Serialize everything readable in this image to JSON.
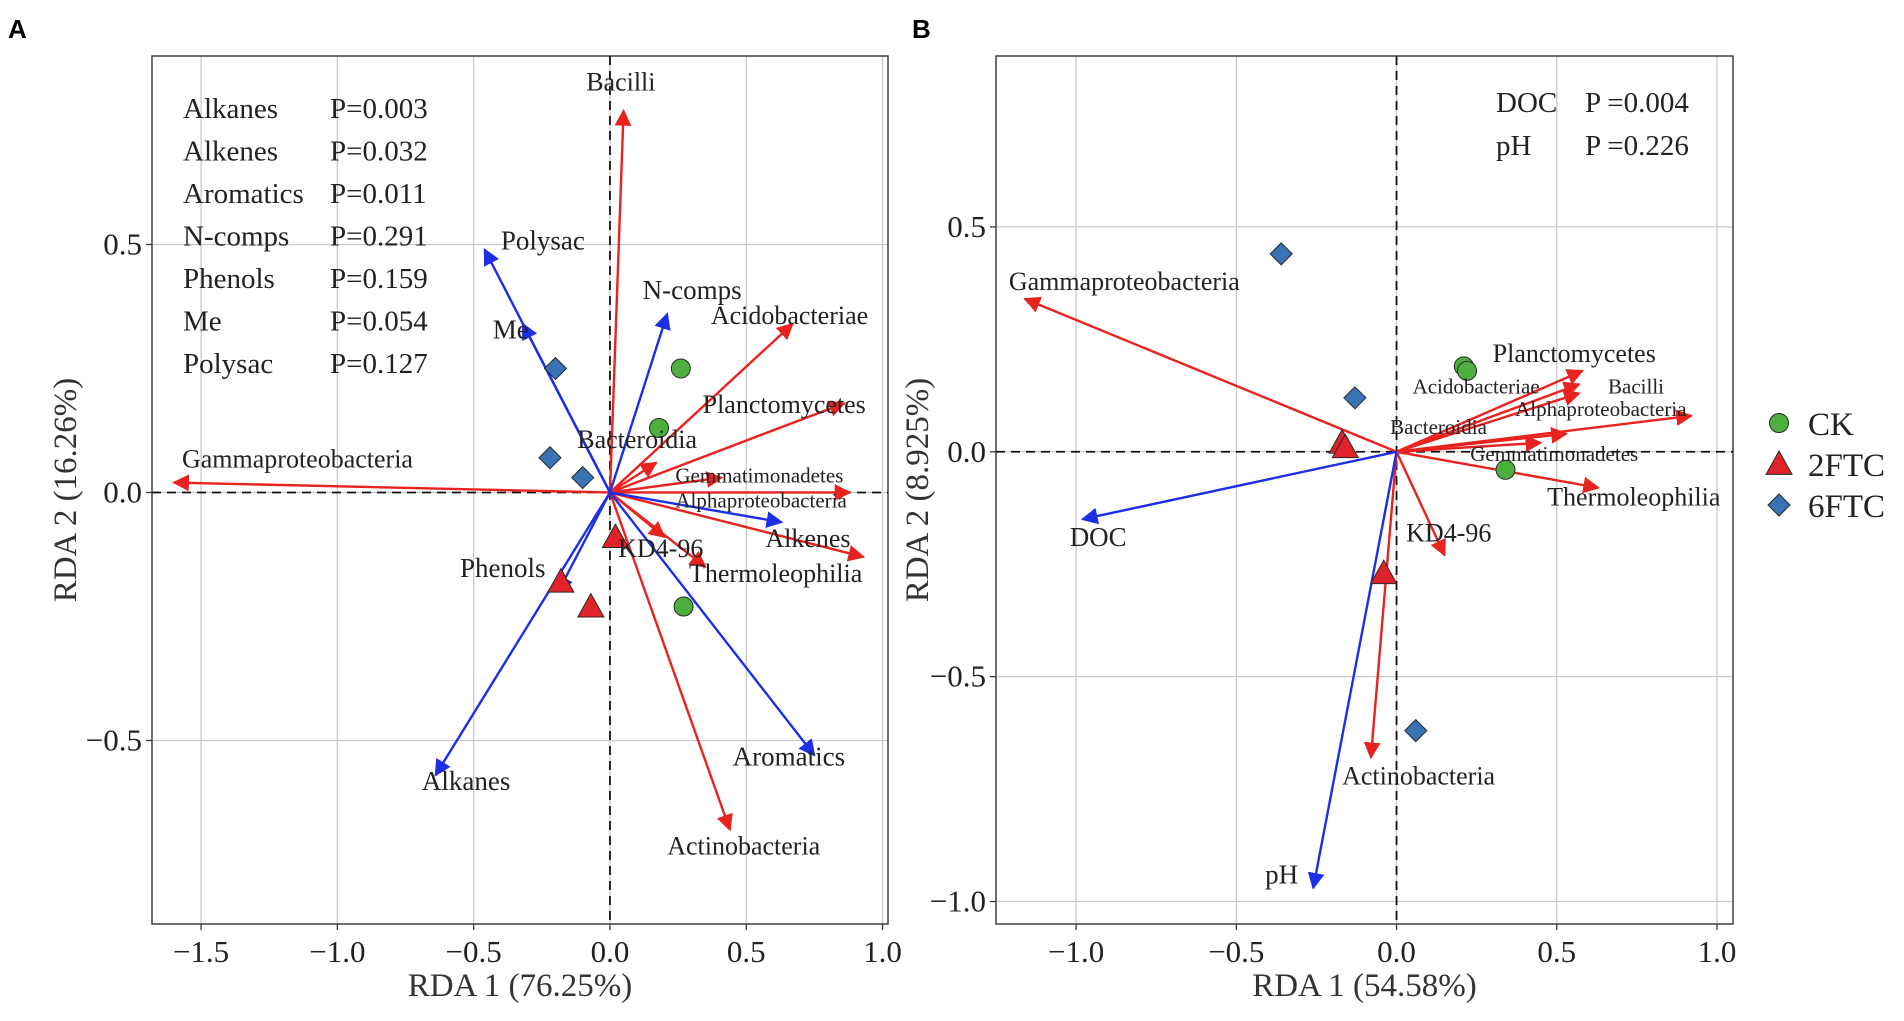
{
  "colors": {
    "species": "#e8231f",
    "env": "#1c2fe6",
    "ck": "#4caf3e",
    "ftc2": "#e0232a",
    "ftc6": "#3a73b4",
    "grid": "#c9c9c9"
  },
  "legend": [
    {
      "label": "CK",
      "shape": "circle",
      "color": "#4caf3e"
    },
    {
      "label": "2FTC",
      "shape": "triangle",
      "color": "#e0232a"
    },
    {
      "label": "6FTC",
      "shape": "diamond",
      "color": "#3a73b4"
    }
  ],
  "chart_data": [
    {
      "panel": "A",
      "type": "scatter",
      "subtype": "rda-biplot",
      "xlabel": "RDA 1 (76.25%)",
      "ylabel": "RDA 2 (16.26%)",
      "xlim": [
        -1.68,
        1.02
      ],
      "ylim": [
        -0.87,
        0.88
      ],
      "xticks": [
        -1.5,
        -1.0,
        -0.5,
        0.0,
        0.5,
        1.0
      ],
      "xtick_labels": [
        "−1.5",
        "−1.0",
        "−0.5",
        "0.0",
        "0.5",
        "1.0"
      ],
      "yticks": [
        -0.5,
        0.0,
        0.5
      ],
      "ytick_labels": [
        "−0.5",
        "0.0",
        "0.5"
      ],
      "stats": [
        {
          "name": "Alkanes",
          "p": "P=0.003"
        },
        {
          "name": "Alkenes",
          "p": "P=0.032"
        },
        {
          "name": "Aromatics",
          "p": "P=0.011"
        },
        {
          "name": "N-comps",
          "p": "P=0.291"
        },
        {
          "name": "Phenols",
          "p": "P=0.159"
        },
        {
          "name": "Me",
          "p": "P=0.054"
        },
        {
          "name": "Polysac",
          "p": "P=0.127"
        }
      ],
      "species_vectors": [
        {
          "name": "Bacilli",
          "x": 0.05,
          "y": 0.77,
          "lx": 0.04,
          "ly": 0.81,
          "anchor": "middle",
          "size": "lg"
        },
        {
          "name": "Acidobacteriae",
          "x": 0.67,
          "y": 0.34,
          "lx": 0.37,
          "ly": 0.34,
          "anchor": "start",
          "size": "lg"
        },
        {
          "name": "Planctomycetes",
          "x": 0.86,
          "y": 0.18,
          "lx": 0.34,
          "ly": 0.16,
          "anchor": "start",
          "size": "lg"
        },
        {
          "name": "Bacteroidia",
          "x": 0.17,
          "y": 0.06,
          "lx": -0.12,
          "ly": 0.09,
          "anchor": "start",
          "size": "lg"
        },
        {
          "name": "Gemmatimonadetes",
          "x": 0.41,
          "y": 0.03,
          "lx": 0.24,
          "ly": 0.02,
          "anchor": "start",
          "size": "sm"
        },
        {
          "name": "Alphaproteobacteria",
          "x": 0.88,
          "y": 0.0,
          "lx": 0.24,
          "ly": -0.03,
          "anchor": "start",
          "size": "sm"
        },
        {
          "name": "Alkenes",
          "x": 0.93,
          "y": -0.13,
          "lx": 0.57,
          "ly": -0.11,
          "anchor": "start",
          "size": "lg"
        },
        {
          "name": "KD4-96",
          "x": 0.2,
          "y": -0.09,
          "lx": 0.03,
          "ly": -0.13,
          "anchor": "start",
          "size": "lg"
        },
        {
          "name": "Thermoleophilia",
          "x": 0.35,
          "y": -0.15,
          "lx": 0.29,
          "ly": -0.18,
          "anchor": "start",
          "size": "lg"
        },
        {
          "name": "Gammaproteobacteria",
          "x": -1.6,
          "y": 0.02,
          "lx": -1.57,
          "ly": 0.05,
          "anchor": "start",
          "size": "lg"
        },
        {
          "name": "Actinobacteria",
          "x": 0.44,
          "y": -0.68,
          "lx": 0.21,
          "ly": -0.73,
          "anchor": "start",
          "size": "lg"
        }
      ],
      "env_vectors": [
        {
          "name": "Polysac",
          "x": -0.46,
          "y": 0.49,
          "lx": -0.4,
          "ly": 0.49,
          "anchor": "start"
        },
        {
          "name": "Me",
          "x": -0.32,
          "y": 0.34,
          "lx": -0.43,
          "ly": 0.31,
          "anchor": "start"
        },
        {
          "name": "N-comps",
          "x": 0.21,
          "y": 0.36,
          "lx": 0.12,
          "ly": 0.39,
          "anchor": "start"
        },
        {
          "name": "Alkenes",
          "x": 0.63,
          "y": -0.06
        },
        {
          "name": "Phenols",
          "x": -0.19,
          "y": -0.2,
          "lx": -0.55,
          "ly": -0.17,
          "anchor": "start"
        },
        {
          "name": "Alkanes",
          "x": -0.64,
          "y": -0.57,
          "lx": -0.69,
          "ly": -0.6,
          "anchor": "start"
        },
        {
          "name": "Aromatics",
          "x": 0.75,
          "y": -0.53,
          "lx": 0.45,
          "ly": -0.55,
          "anchor": "start"
        }
      ],
      "samples": [
        {
          "group": "CK",
          "x": 0.26,
          "y": 0.25
        },
        {
          "group": "CK",
          "x": 0.18,
          "y": 0.13
        },
        {
          "group": "CK",
          "x": 0.27,
          "y": -0.23
        },
        {
          "group": "2FTC",
          "x": -0.18,
          "y": -0.18
        },
        {
          "group": "2FTC",
          "x": -0.07,
          "y": -0.23
        },
        {
          "group": "2FTC",
          "x": 0.02,
          "y": -0.09
        },
        {
          "group": "6FTC",
          "x": -0.2,
          "y": 0.25
        },
        {
          "group": "6FTC",
          "x": -0.22,
          "y": 0.07
        },
        {
          "group": "6FTC",
          "x": -0.1,
          "y": 0.03
        }
      ]
    },
    {
      "panel": "B",
      "type": "scatter",
      "subtype": "rda-biplot",
      "xlabel": "RDA 1 (54.58%)",
      "ylabel": "RDA 2 (8.925%)",
      "xlim": [
        -1.25,
        1.05
      ],
      "ylim": [
        -1.05,
        0.88
      ],
      "xticks": [
        -1.0,
        -0.5,
        0.0,
        0.5,
        1.0
      ],
      "xtick_labels": [
        "−1.0",
        "−0.5",
        "0.0",
        "0.5",
        "1.0"
      ],
      "yticks": [
        -1.0,
        -0.5,
        0.0,
        0.5
      ],
      "ytick_labels": [
        "−1.0",
        "−0.5",
        "0.0",
        "0.5"
      ],
      "stats": [
        {
          "name": "DOC",
          "p": "P =0.004"
        },
        {
          "name": "pH",
          "p": "P =0.226"
        }
      ],
      "species_vectors": [
        {
          "name": "Gammaproteobacteria",
          "x": -1.16,
          "y": 0.34,
          "lx": -1.21,
          "ly": 0.36,
          "anchor": "start",
          "size": "lg"
        },
        {
          "name": "Planctomycetes",
          "x": 0.58,
          "y": 0.18,
          "lx": 0.3,
          "ly": 0.2,
          "anchor": "start",
          "size": "lg"
        },
        {
          "name": "Acidobacteriae",
          "x": 0.57,
          "y": 0.15,
          "lx": 0.05,
          "ly": 0.13,
          "anchor": "start",
          "size": "sm"
        },
        {
          "name": "Bacilli",
          "x": 0.57,
          "y": 0.13,
          "lx": 0.66,
          "ly": 0.13,
          "anchor": "start",
          "size": "sm"
        },
        {
          "name": "Alphaproteobacteria",
          "x": 0.92,
          "y": 0.08,
          "lx": 0.37,
          "ly": 0.08,
          "anchor": "start",
          "size": "sm"
        },
        {
          "name": "Bacteroidia",
          "x": 0.45,
          "y": 0.02,
          "lx": -0.02,
          "ly": 0.04,
          "anchor": "start",
          "size": "sm"
        },
        {
          "name": "Gemmatimonadetes",
          "x": 0.53,
          "y": 0.04,
          "lx": 0.23,
          "ly": -0.02,
          "anchor": "start",
          "size": "sm"
        },
        {
          "name": "Thermoleophilia",
          "x": 0.63,
          "y": -0.08,
          "lx": 0.47,
          "ly": -0.12,
          "anchor": "start",
          "size": "lg"
        },
        {
          "name": "KD4-96",
          "x": 0.15,
          "y": -0.23,
          "lx": 0.03,
          "ly": -0.2,
          "anchor": "start",
          "size": "lg"
        },
        {
          "name": "Actinobacteria",
          "x": -0.08,
          "y": -0.68,
          "lx": -0.17,
          "ly": -0.74,
          "anchor": "start",
          "size": "lg"
        }
      ],
      "env_vectors": [
        {
          "name": "DOC",
          "x": -0.98,
          "y": -0.15,
          "lx": -1.02,
          "ly": -0.21,
          "anchor": "start"
        },
        {
          "name": "pH",
          "x": -0.26,
          "y": -0.97,
          "lx": -0.41,
          "ly": -0.96,
          "anchor": "start"
        }
      ],
      "samples": [
        {
          "group": "CK",
          "x": 0.21,
          "y": 0.19
        },
        {
          "group": "CK",
          "x": 0.22,
          "y": 0.18
        },
        {
          "group": "CK",
          "x": 0.34,
          "y": -0.04
        },
        {
          "group": "2FTC",
          "x": -0.17,
          "y": 0.02
        },
        {
          "group": "2FTC",
          "x": -0.16,
          "y": 0.01
        },
        {
          "group": "2FTC",
          "x": -0.04,
          "y": -0.27
        },
        {
          "group": "6FTC",
          "x": -0.36,
          "y": 0.44
        },
        {
          "group": "6FTC",
          "x": -0.13,
          "y": 0.12
        },
        {
          "group": "6FTC",
          "x": 0.06,
          "y": -0.62
        }
      ]
    }
  ]
}
